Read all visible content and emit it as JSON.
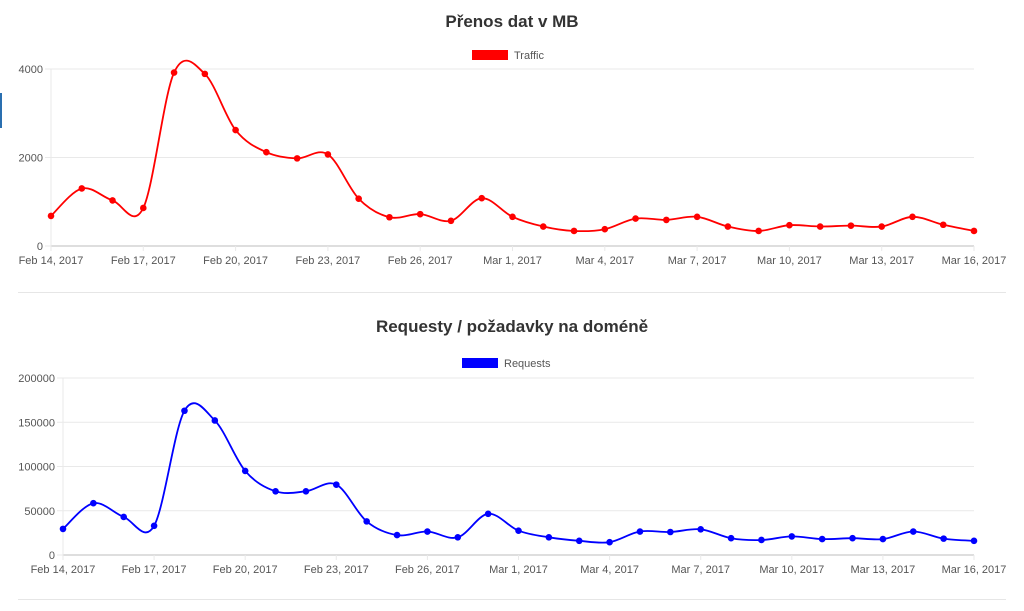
{
  "colors": {
    "traffic": "#ff0000",
    "requests": "#0000ff",
    "grid": "#e9e9e9",
    "axis": "#bdbdbd",
    "text": "#555555",
    "title": "#333333"
  },
  "chart_data": [
    {
      "type": "line",
      "title": "Přenos dat v MB",
      "xlabel": "",
      "ylabel": "",
      "x": [
        "Feb 14, 2017",
        "Feb 15, 2017",
        "Feb 16, 2017",
        "Feb 17, 2017",
        "Feb 18, 2017",
        "Feb 19, 2017",
        "Feb 20, 2017",
        "Feb 21, 2017",
        "Feb 22, 2017",
        "Feb 23, 2017",
        "Feb 24, 2017",
        "Feb 25, 2017",
        "Feb 26, 2017",
        "Feb 27, 2017",
        "Feb 28, 2017",
        "Mar 1, 2017",
        "Mar 2, 2017",
        "Mar 3, 2017",
        "Mar 4, 2017",
        "Mar 5, 2017",
        "Mar 6, 2017",
        "Mar 7, 2017",
        "Mar 8, 2017",
        "Mar 9, 2017",
        "Mar 10, 2017",
        "Mar 11, 2017",
        "Mar 12, 2017",
        "Mar 13, 2017",
        "Mar 14, 2017",
        "Mar 15, 2017",
        "Mar 16, 2017"
      ],
      "x_ticks": [
        "Feb 14, 2017",
        "Feb 17, 2017",
        "Feb 20, 2017",
        "Feb 23, 2017",
        "Feb 26, 2017",
        "Mar 1, 2017",
        "Mar 4, 2017",
        "Mar 7, 2017",
        "Mar 10, 2017",
        "Mar 13, 2017",
        "Mar 16, 2017"
      ],
      "y_ticks": [
        "0",
        "2000",
        "4000"
      ],
      "ylim": [
        0,
        4000
      ],
      "legend_position": "top-center",
      "grid": true,
      "series": [
        {
          "name": "Traffic",
          "color": "#ff0000",
          "values": [
            680,
            1300,
            1030,
            860,
            3920,
            3890,
            2620,
            2120,
            1980,
            2070,
            1070,
            650,
            720,
            570,
            1080,
            660,
            440,
            340,
            380,
            620,
            590,
            660,
            440,
            340,
            470,
            440,
            460,
            440,
            660,
            480,
            340
          ]
        }
      ]
    },
    {
      "type": "line",
      "title": "Requesty / požadavky na doméně",
      "xlabel": "",
      "ylabel": "",
      "x": [
        "Feb 14, 2017",
        "Feb 15, 2017",
        "Feb 16, 2017",
        "Feb 17, 2017",
        "Feb 18, 2017",
        "Feb 19, 2017",
        "Feb 20, 2017",
        "Feb 21, 2017",
        "Feb 22, 2017",
        "Feb 23, 2017",
        "Feb 24, 2017",
        "Feb 25, 2017",
        "Feb 26, 2017",
        "Feb 27, 2017",
        "Feb 28, 2017",
        "Mar 1, 2017",
        "Mar 2, 2017",
        "Mar 3, 2017",
        "Mar 4, 2017",
        "Mar 5, 2017",
        "Mar 6, 2017",
        "Mar 7, 2017",
        "Mar 8, 2017",
        "Mar 9, 2017",
        "Mar 10, 2017",
        "Mar 11, 2017",
        "Mar 12, 2017",
        "Mar 13, 2017",
        "Mar 14, 2017",
        "Mar 15, 2017",
        "Mar 16, 2017"
      ],
      "x_ticks": [
        "Feb 14, 2017",
        "Feb 17, 2017",
        "Feb 20, 2017",
        "Feb 23, 2017",
        "Feb 26, 2017",
        "Mar 1, 2017",
        "Mar 4, 2017",
        "Mar 7, 2017",
        "Mar 10, 2017",
        "Mar 13, 2017",
        "Mar 16, 2017"
      ],
      "y_ticks": [
        "0",
        "50000",
        "100000",
        "150000",
        "200000"
      ],
      "ylim": [
        0,
        200000
      ],
      "legend_position": "top-center",
      "grid": true,
      "series": [
        {
          "name": "Requests",
          "color": "#0000ff",
          "values": [
            29500,
            58500,
            43000,
            33000,
            163000,
            152000,
            95000,
            72000,
            72000,
            79500,
            38000,
            22500,
            26500,
            20000,
            46500,
            27500,
            20000,
            16000,
            14500,
            26500,
            26000,
            29000,
            19000,
            17000,
            21000,
            18000,
            19000,
            18000,
            26500,
            18500,
            16000
          ]
        }
      ]
    }
  ]
}
